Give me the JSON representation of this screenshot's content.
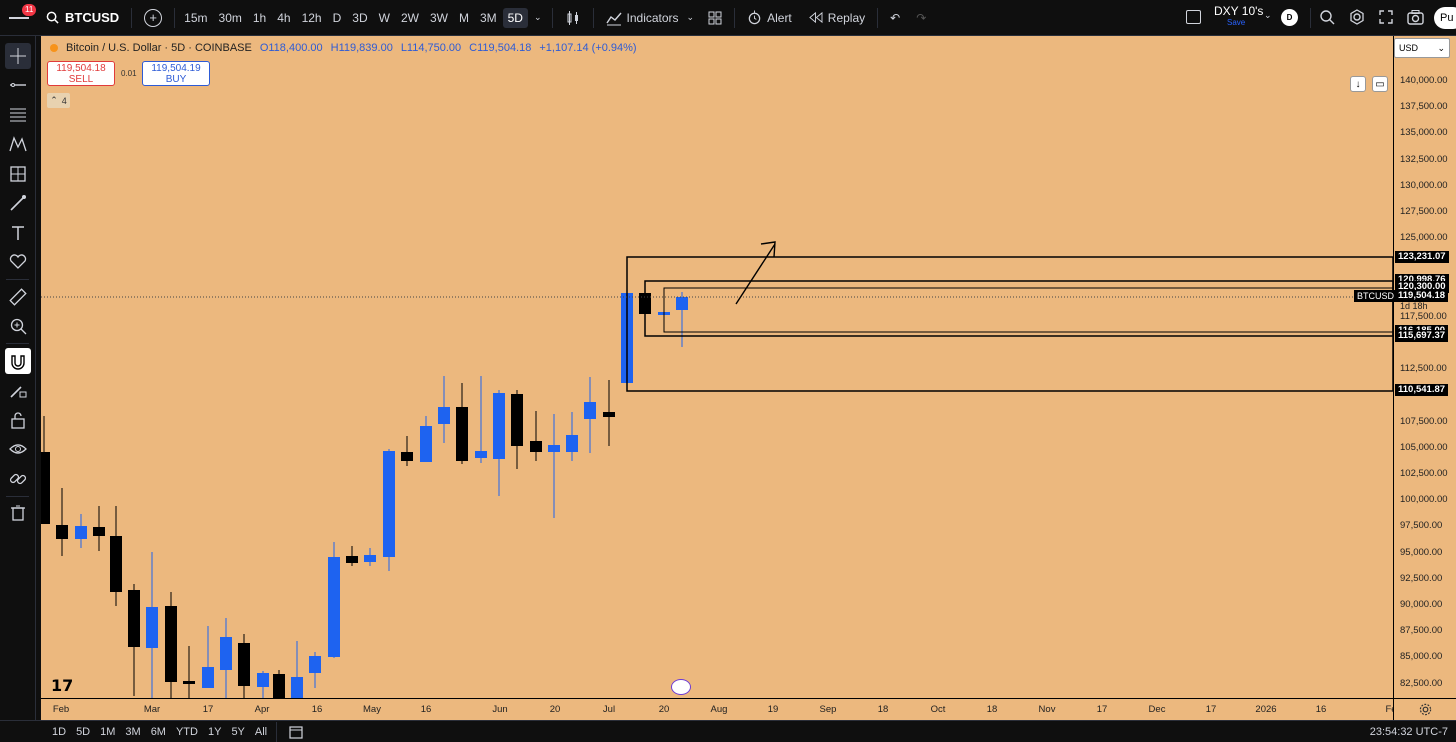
{
  "topbar": {
    "notification_count": "11",
    "symbol": "BTCUSD",
    "intervals": [
      "15m",
      "30m",
      "1h",
      "4h",
      "12h",
      "D",
      "3D",
      "W",
      "2W",
      "3W",
      "M",
      "3M",
      "5D"
    ],
    "active_interval": "5D",
    "indicators_label": "Indicators",
    "alert_label": "Alert",
    "replay_label": "Replay",
    "layout_name": "DXY 10's",
    "layout_save": "Save",
    "publish_label": "Pu"
  },
  "legend": {
    "title": "Bitcoin / U.S. Dollar · 5D · COINBASE",
    "open": "O118,400.00",
    "high": "H119,839.00",
    "low": "L114,750.00",
    "close": "C119,504.18",
    "change": "+1,107.14 (+0.94%)"
  },
  "trade": {
    "sell_price": "119,504.18",
    "sell_label": "SELL",
    "spread": "0.01",
    "buy_price": "119,504.19",
    "buy_label": "BUY",
    "indicators_collapsed": "4"
  },
  "price_axis": {
    "currency": "USD",
    "labels": [
      "140,000.00",
      "137,500.00",
      "135,000.00",
      "132,500.00",
      "130,000.00",
      "127,500.00",
      "125,000.00",
      "117,500.00",
      "112,500.00",
      "107,500.00",
      "105,000.00",
      "102,500.00",
      "100,000.00",
      "97,500.00",
      "95,000.00",
      "92,500.00",
      "90,000.00",
      "87,500.00",
      "85,000.00",
      "82,500.00"
    ],
    "tags": [
      "123,231.07",
      "120,998.76",
      "120,300.00",
      "116,185.00",
      "115,697.37",
      "110,541.87"
    ],
    "current_symbol": "BTCUSD",
    "current_price": "119,504.18",
    "countdown": "1d 18h"
  },
  "time_axis": {
    "labels": [
      "Feb",
      "Mar",
      "17",
      "Apr",
      "16",
      "May",
      "16",
      "Jun",
      "20",
      "Jul",
      "20",
      "Aug",
      "19",
      "Sep",
      "18",
      "Oct",
      "18",
      "Nov",
      "17",
      "Dec",
      "17",
      "2026",
      "16",
      "Fe"
    ]
  },
  "bottombar": {
    "ranges": [
      "1D",
      "5D",
      "1M",
      "3M",
      "6M",
      "YTD",
      "1Y",
      "5Y",
      "All"
    ],
    "clock": "23:54:32 UTC-7"
  },
  "colors": {
    "background": "#ecb87e",
    "up_candle": "#1e63f0",
    "down_candle": "#000000"
  }
}
